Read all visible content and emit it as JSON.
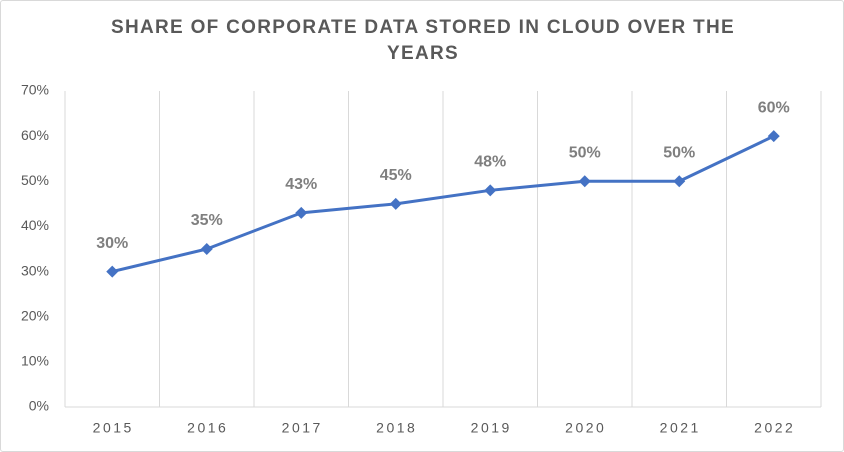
{
  "chart_data": {
    "type": "line",
    "title": "SHARE OF CORPORATE DATA STORED IN CLOUD OVER THE YEARS",
    "categories": [
      "2015",
      "2016",
      "2017",
      "2018",
      "2019",
      "2020",
      "2021",
      "2022"
    ],
    "values": [
      30,
      35,
      43,
      45,
      48,
      50,
      50,
      60
    ],
    "value_labels": [
      "30%",
      "35%",
      "43%",
      "45%",
      "48%",
      "50%",
      "50%",
      "60%"
    ],
    "color": "#4472c4",
    "ylim": [
      0,
      70
    ],
    "yticks": [
      {
        "value": 0,
        "label": "0%"
      },
      {
        "value": 10,
        "label": "10%"
      },
      {
        "value": 20,
        "label": "20%"
      },
      {
        "value": 30,
        "label": "30%"
      },
      {
        "value": 40,
        "label": "40%"
      },
      {
        "value": 50,
        "label": "50%"
      },
      {
        "value": 60,
        "label": "60%"
      },
      {
        "value": 70,
        "label": "70%"
      }
    ]
  }
}
